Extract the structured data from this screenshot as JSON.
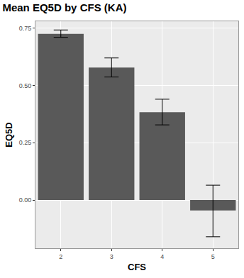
{
  "chart_data": {
    "type": "bar",
    "title": "Mean EQ5D by CFS (KA)",
    "x_label": "CFS",
    "y_label": "EQ5D",
    "categories": [
      "2",
      "3",
      "4",
      "5"
    ],
    "values": [
      0.725,
      0.578,
      0.383,
      -0.045
    ],
    "error_plus": [
      0.017,
      0.042,
      0.057,
      0.11
    ],
    "error_minus": [
      0.015,
      0.041,
      0.055,
      0.115
    ],
    "color": "#595959",
    "ylim": [
      -0.21,
      0.78
    ],
    "yticks": [
      {
        "value": 0,
        "label": "0.00"
      },
      {
        "value": 0.25,
        "label": "0.25"
      },
      {
        "value": 0.5,
        "label": "0.50"
      },
      {
        "value": 0.75,
        "label": "0.75"
      }
    ],
    "grid": true
  }
}
